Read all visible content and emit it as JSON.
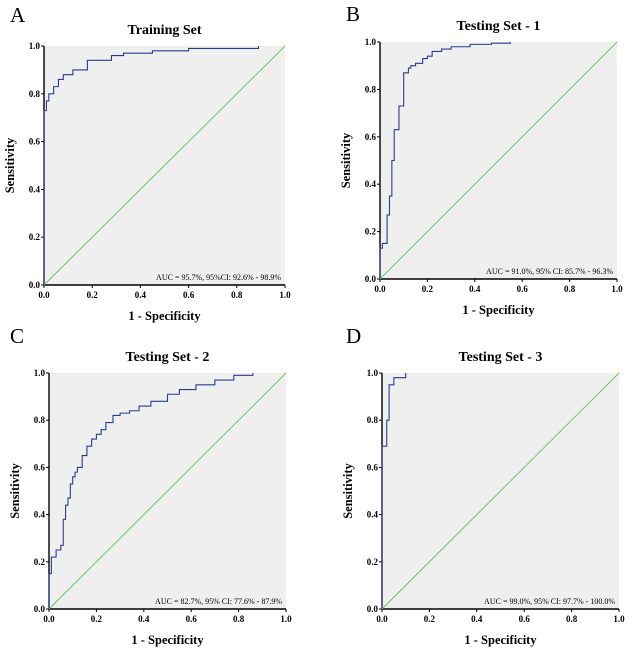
{
  "figure": {
    "panels": [
      {
        "letter": "A",
        "chart_data": {
          "type": "line",
          "title": "Training Set",
          "xlabel": "1 - Specificity",
          "ylabel": "Sensitivity",
          "xlim": [
            0,
            1
          ],
          "ylim": [
            0,
            1
          ],
          "xticks": [
            "0.0",
            "0.2",
            "0.4",
            "0.6",
            "0.8",
            "1.0"
          ],
          "yticks": [
            "0.0",
            "0.2",
            "0.4",
            "0.6",
            "0.8",
            "1.0"
          ],
          "annotation": "AUC = 95.7%, 95%CI: 92.6% - 98.9%",
          "grid": false,
          "colors": {
            "roc": "#2b3a8f",
            "reference": "#5cc45c",
            "background": "#efefef"
          },
          "series": [
            {
              "role": "roc",
              "x": [
                0,
                0,
                0.01,
                0.01,
                0.02,
                0.02,
                0.04,
                0.04,
                0.06,
                0.06,
                0.08,
                0.08,
                0.12,
                0.12,
                0.18,
                0.18,
                0.28,
                0.28,
                0.33,
                0.33,
                0.45,
                0.45,
                0.6,
                0.6,
                0.89,
                0.89
              ],
              "y": [
                0,
                0.73,
                0.73,
                0.77,
                0.77,
                0.8,
                0.8,
                0.83,
                0.83,
                0.86,
                0.86,
                0.88,
                0.88,
                0.9,
                0.9,
                0.94,
                0.94,
                0.96,
                0.96,
                0.97,
                0.97,
                0.98,
                0.98,
                0.99,
                0.99,
                1.0
              ]
            },
            {
              "role": "reference",
              "x": [
                0,
                1
              ],
              "y": [
                0,
                1
              ]
            }
          ]
        }
      },
      {
        "letter": "B",
        "chart_data": {
          "type": "line",
          "title": "Testing Set - 1",
          "xlabel": "1 - Specificity",
          "ylabel": "Sensitivity",
          "xlim": [
            0,
            1
          ],
          "ylim": [
            0,
            1
          ],
          "xticks": [
            "0.0",
            "0.2",
            "0.4",
            "0.6",
            "0.8",
            "1.0"
          ],
          "yticks": [
            "0.0",
            "0.2",
            "0.4",
            "0.6",
            "0.8",
            "1.0"
          ],
          "annotation": "AUC = 91.0%, 95% CI: 85.7% - 96.3%",
          "grid": false,
          "colors": {
            "roc": "#2b3a8f",
            "reference": "#5cc45c",
            "background": "#efefef"
          },
          "series": [
            {
              "role": "roc",
              "x": [
                0,
                0,
                0.01,
                0.01,
                0.03,
                0.03,
                0.04,
                0.04,
                0.05,
                0.05,
                0.06,
                0.06,
                0.08,
                0.08,
                0.1,
                0.1,
                0.12,
                0.12,
                0.13,
                0.13,
                0.15,
                0.15,
                0.18,
                0.18,
                0.2,
                0.2,
                0.22,
                0.22,
                0.26,
                0.26,
                0.3,
                0.3,
                0.38,
                0.38,
                0.47,
                0.47,
                0.55,
                0.55
              ],
              "y": [
                0,
                0.13,
                0.13,
                0.15,
                0.15,
                0.27,
                0.27,
                0.35,
                0.35,
                0.5,
                0.5,
                0.63,
                0.63,
                0.73,
                0.73,
                0.87,
                0.87,
                0.89,
                0.89,
                0.9,
                0.9,
                0.91,
                0.91,
                0.93,
                0.93,
                0.94,
                0.94,
                0.96,
                0.96,
                0.97,
                0.97,
                0.98,
                0.98,
                0.99,
                0.99,
                0.995,
                0.995,
                1.0
              ]
            },
            {
              "role": "reference",
              "x": [
                0,
                1
              ],
              "y": [
                0,
                1
              ]
            }
          ]
        }
      },
      {
        "letter": "C",
        "chart_data": {
          "type": "line",
          "title": "Testing Set - 2",
          "xlabel": "1 - Specificity",
          "ylabel": "Sensitivity",
          "xlim": [
            0,
            1
          ],
          "ylim": [
            0,
            1
          ],
          "xticks": [
            "0.0",
            "0.2",
            "0.4",
            "0.6",
            "0.8",
            "1.0"
          ],
          "yticks": [
            "0.0",
            "0.2",
            "0.4",
            "0.6",
            "0.8",
            "1.0"
          ],
          "annotation": "AUC = 82.7%, 95% CI: 77.6% - 87.9%",
          "grid": false,
          "colors": {
            "roc": "#2b3a8f",
            "reference": "#5cc45c",
            "background": "#efefef"
          },
          "series": [
            {
              "role": "roc",
              "x": [
                0,
                0,
                0.01,
                0.01,
                0.03,
                0.03,
                0.05,
                0.05,
                0.06,
                0.06,
                0.07,
                0.07,
                0.08,
                0.08,
                0.09,
                0.09,
                0.1,
                0.1,
                0.11,
                0.11,
                0.12,
                0.12,
                0.14,
                0.14,
                0.16,
                0.16,
                0.18,
                0.18,
                0.2,
                0.2,
                0.22,
                0.22,
                0.24,
                0.24,
                0.27,
                0.27,
                0.3,
                0.3,
                0.34,
                0.34,
                0.38,
                0.38,
                0.43,
                0.43,
                0.5,
                0.5,
                0.55,
                0.55,
                0.62,
                0.62,
                0.7,
                0.7,
                0.78,
                0.78,
                0.86,
                0.86
              ],
              "y": [
                0,
                0.15,
                0.15,
                0.22,
                0.22,
                0.25,
                0.25,
                0.27,
                0.27,
                0.38,
                0.38,
                0.44,
                0.44,
                0.47,
                0.47,
                0.53,
                0.53,
                0.56,
                0.56,
                0.58,
                0.58,
                0.6,
                0.6,
                0.65,
                0.65,
                0.69,
                0.69,
                0.72,
                0.72,
                0.74,
                0.74,
                0.76,
                0.76,
                0.79,
                0.79,
                0.82,
                0.82,
                0.83,
                0.83,
                0.84,
                0.84,
                0.86,
                0.86,
                0.88,
                0.88,
                0.91,
                0.91,
                0.93,
                0.93,
                0.95,
                0.95,
                0.97,
                0.97,
                0.99,
                0.99,
                1.0
              ]
            },
            {
              "role": "reference",
              "x": [
                0,
                1
              ],
              "y": [
                0,
                1
              ]
            }
          ]
        }
      },
      {
        "letter": "D",
        "chart_data": {
          "type": "line",
          "title": "Testing Set - 3",
          "xlabel": "1 - Specificity",
          "ylabel": "Sensitivity",
          "xlim": [
            0,
            1
          ],
          "ylim": [
            0,
            1
          ],
          "xticks": [
            "0.0",
            "0.2",
            "0.4",
            "0.6",
            "0.8",
            "1.0"
          ],
          "yticks": [
            "0.0",
            "0.2",
            "0.4",
            "0.6",
            "0.8",
            "1.0"
          ],
          "annotation": "AUC = 99.0%, 95% CI: 97.7% - 100.0%",
          "grid": false,
          "colors": {
            "roc": "#2b3a8f",
            "reference": "#5cc45c",
            "background": "#efefef"
          },
          "series": [
            {
              "role": "roc",
              "x": [
                0,
                0,
                0.02,
                0.02,
                0.03,
                0.03,
                0.05,
                0.05,
                0.1,
                0.1
              ],
              "y": [
                0,
                0.69,
                0.69,
                0.8,
                0.8,
                0.95,
                0.95,
                0.98,
                0.98,
                1.0
              ]
            },
            {
              "role": "reference",
              "x": [
                0,
                1
              ],
              "y": [
                0,
                1
              ]
            }
          ]
        }
      }
    ]
  }
}
